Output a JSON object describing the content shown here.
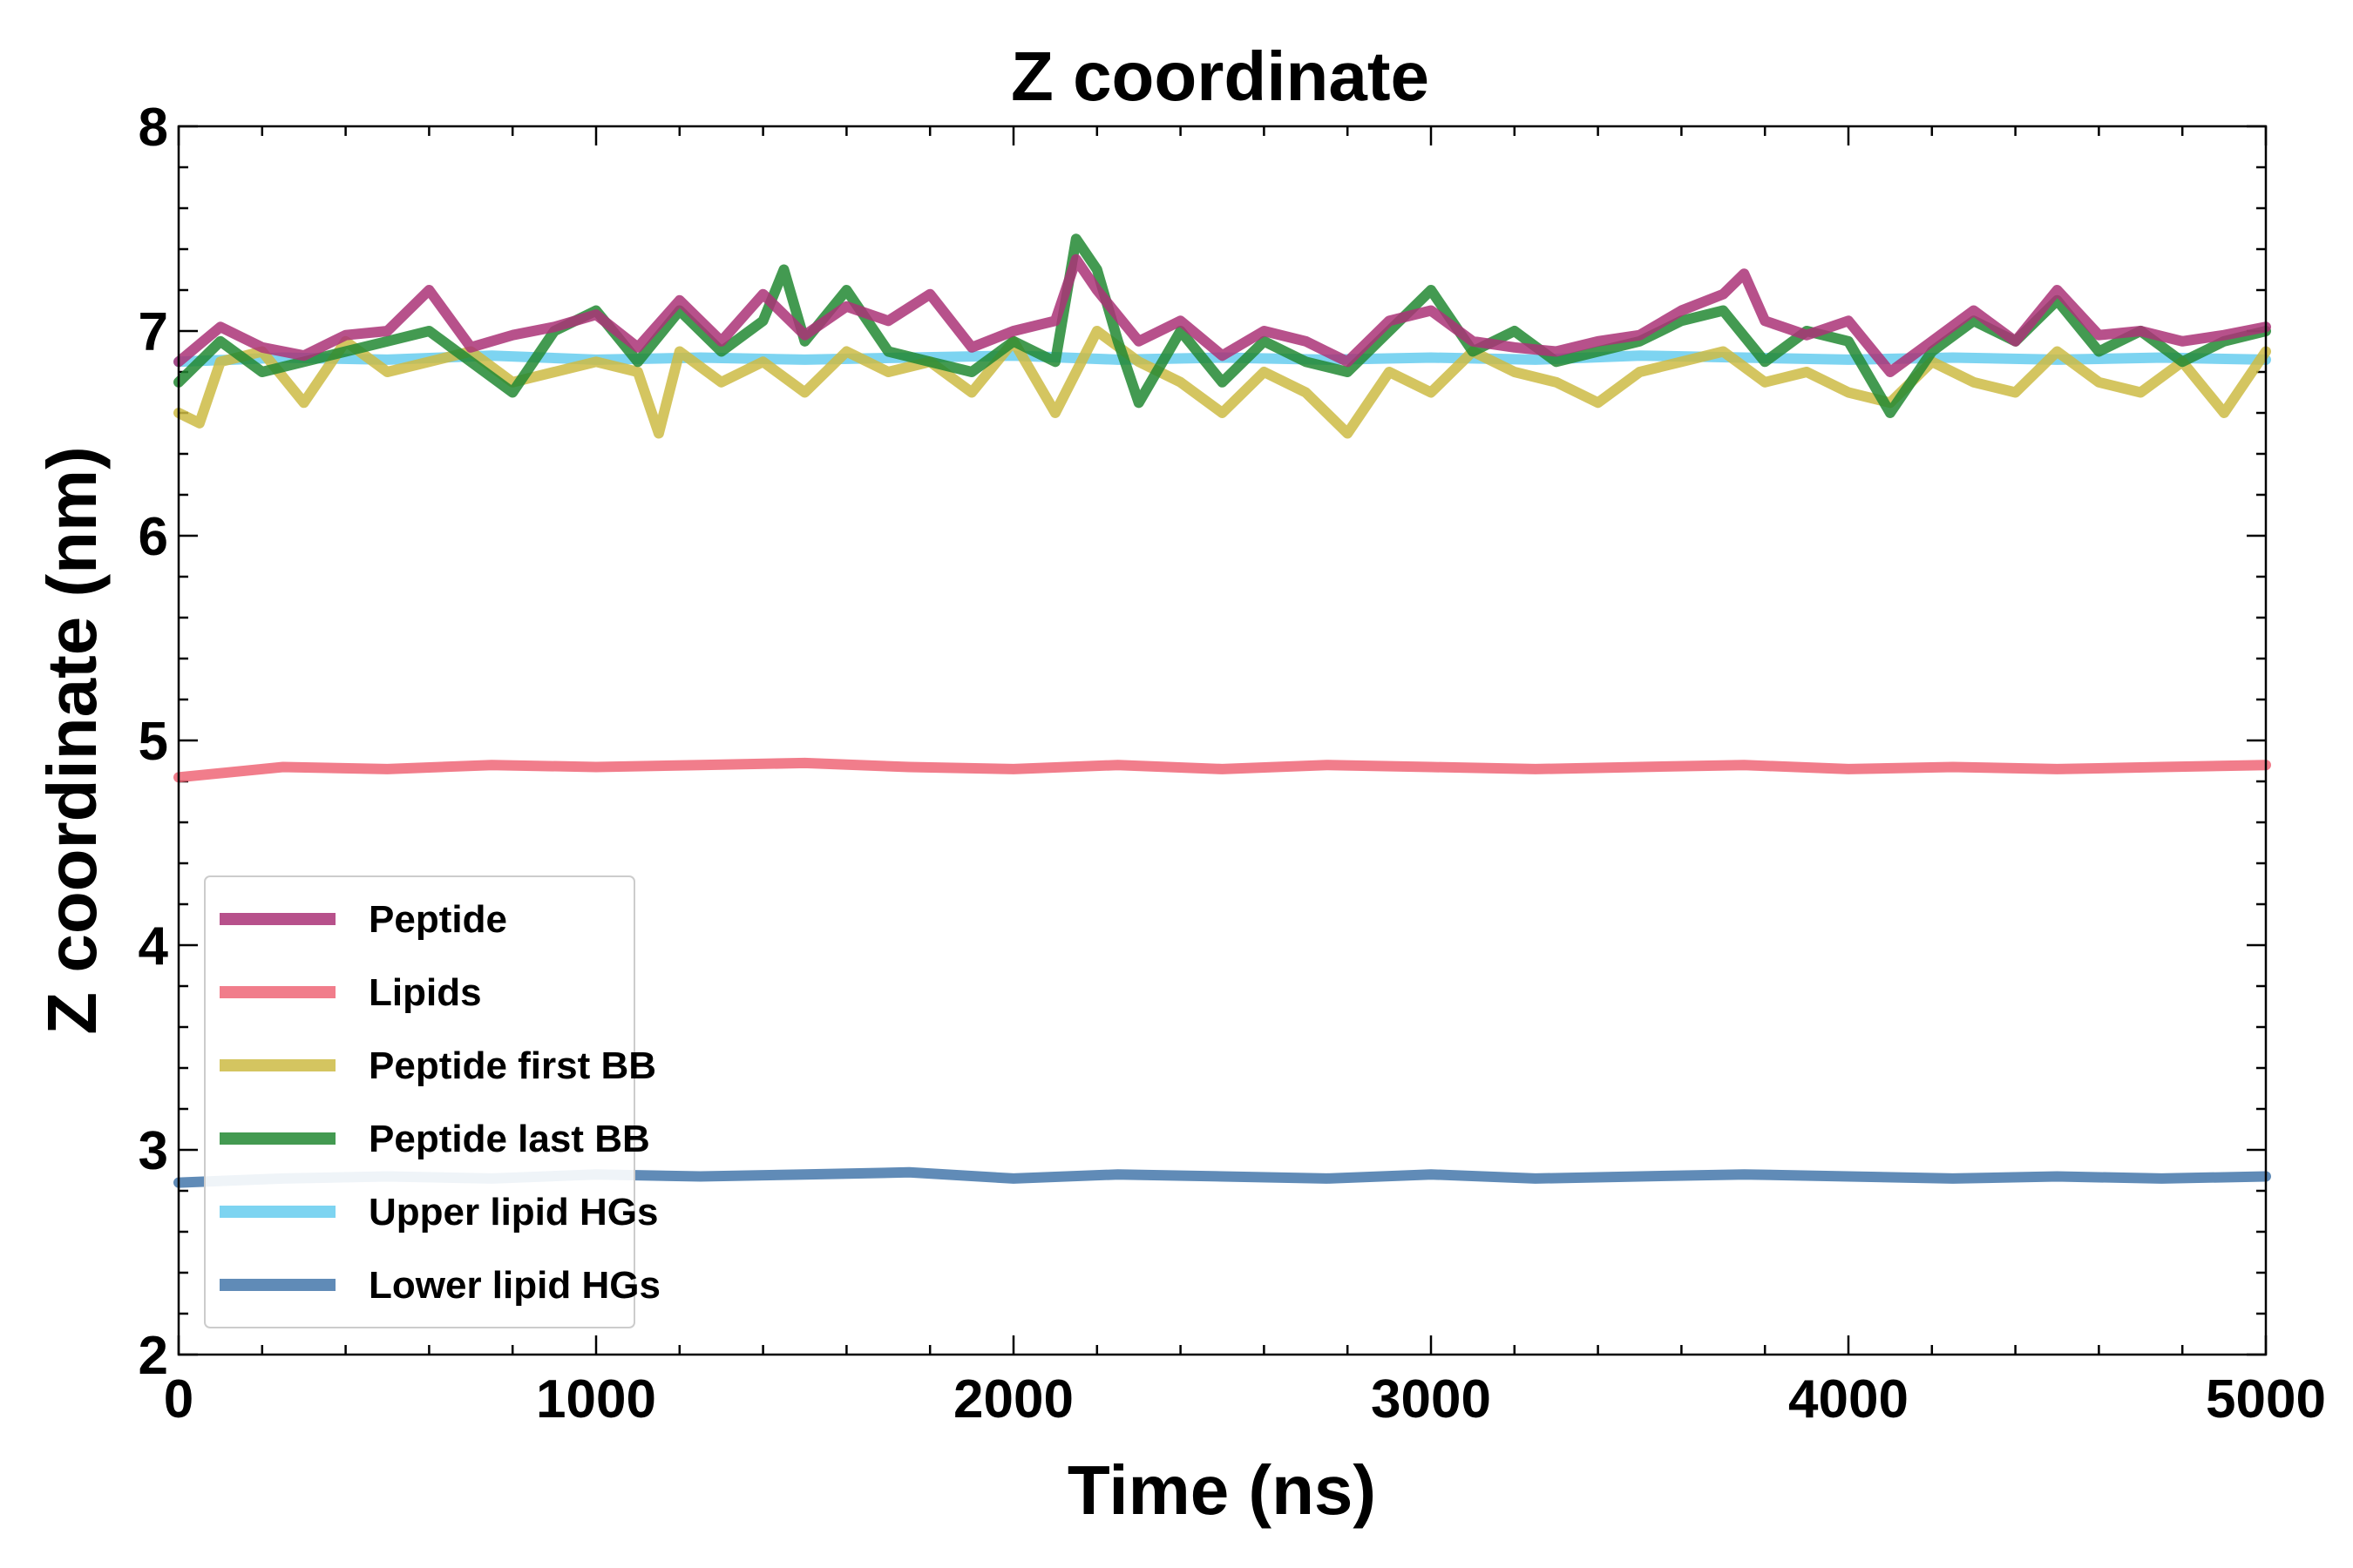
{
  "chart_data": {
    "type": "line",
    "title": "Z coordinate",
    "xlabel": "Time (ns)",
    "ylabel": "Z coordinate (nm)",
    "xlim": [
      0,
      5000
    ],
    "ylim": [
      2,
      8
    ],
    "x_ticks": [
      0,
      1000,
      2000,
      3000,
      4000,
      5000
    ],
    "y_ticks": [
      2,
      3,
      4,
      5,
      6,
      7,
      8
    ],
    "x_minor_step": 200,
    "y_minor_step": 0.2,
    "grid": false,
    "legend_position": "lower-left",
    "series": [
      {
        "name": "Peptide",
        "color": "#aa3377",
        "x": [
          0,
          100,
          200,
          300,
          400,
          500,
          600,
          700,
          800,
          900,
          1000,
          1100,
          1200,
          1300,
          1400,
          1500,
          1600,
          1700,
          1800,
          1900,
          2000,
          2100,
          2150,
          2200,
          2300,
          2400,
          2500,
          2600,
          2700,
          2800,
          2900,
          3000,
          3100,
          3200,
          3300,
          3400,
          3500,
          3600,
          3700,
          3750,
          3800,
          3900,
          4000,
          4100,
          4200,
          4300,
          4400,
          4500,
          4600,
          4700,
          4800,
          4900,
          5000
        ],
        "values": [
          6.85,
          7.02,
          6.92,
          6.88,
          6.98,
          7.0,
          7.2,
          6.92,
          6.98,
          7.02,
          7.08,
          6.92,
          7.15,
          6.95,
          7.18,
          6.98,
          7.12,
          7.05,
          7.18,
          6.92,
          7.0,
          7.05,
          7.35,
          7.2,
          6.95,
          7.05,
          6.88,
          7.0,
          6.95,
          6.85,
          7.05,
          7.1,
          6.95,
          6.92,
          6.9,
          6.95,
          6.98,
          7.1,
          7.18,
          7.28,
          7.05,
          6.98,
          7.05,
          6.8,
          6.95,
          7.1,
          6.95,
          7.2,
          6.98,
          7.0,
          6.95,
          6.98,
          7.02
        ]
      },
      {
        "name": "Lipids",
        "color": "#ee6677",
        "x": [
          0,
          250,
          500,
          750,
          1000,
          1250,
          1500,
          1750,
          2000,
          2250,
          2500,
          2750,
          3000,
          3250,
          3500,
          3750,
          4000,
          4250,
          4500,
          4750,
          5000
        ],
        "values": [
          4.82,
          4.87,
          4.86,
          4.88,
          4.87,
          4.88,
          4.89,
          4.87,
          4.86,
          4.88,
          4.86,
          4.88,
          4.87,
          4.86,
          4.87,
          4.88,
          4.86,
          4.87,
          4.86,
          4.87,
          4.88
        ]
      },
      {
        "name": "Peptide first BB",
        "color": "#ccbb44",
        "x": [
          0,
          50,
          100,
          200,
          300,
          400,
          500,
          600,
          700,
          800,
          900,
          1000,
          1100,
          1150,
          1200,
          1300,
          1400,
          1500,
          1600,
          1700,
          1800,
          1900,
          2000,
          2100,
          2200,
          2300,
          2400,
          2500,
          2600,
          2700,
          2800,
          2900,
          3000,
          3100,
          3200,
          3300,
          3400,
          3500,
          3600,
          3700,
          3800,
          3900,
          4000,
          4100,
          4200,
          4300,
          4400,
          4500,
          4600,
          4700,
          4800,
          4900,
          5000
        ],
        "values": [
          6.6,
          6.55,
          6.85,
          6.9,
          6.65,
          6.95,
          6.8,
          6.85,
          6.9,
          6.75,
          6.8,
          6.85,
          6.8,
          6.5,
          6.9,
          6.75,
          6.85,
          6.7,
          6.9,
          6.8,
          6.85,
          6.7,
          6.95,
          6.6,
          7.0,
          6.85,
          6.75,
          6.6,
          6.8,
          6.7,
          6.5,
          6.8,
          6.7,
          6.9,
          6.8,
          6.75,
          6.65,
          6.8,
          6.85,
          6.9,
          6.75,
          6.8,
          6.7,
          6.65,
          6.85,
          6.75,
          6.7,
          6.9,
          6.75,
          6.7,
          6.85,
          6.6,
          6.9
        ]
      },
      {
        "name": "Peptide last BB",
        "color": "#228833",
        "x": [
          0,
          100,
          200,
          300,
          400,
          500,
          600,
          700,
          800,
          900,
          1000,
          1100,
          1200,
          1300,
          1400,
          1450,
          1500,
          1600,
          1700,
          1800,
          1900,
          2000,
          2100,
          2150,
          2200,
          2250,
          2300,
          2400,
          2500,
          2600,
          2700,
          2800,
          2900,
          3000,
          3100,
          3200,
          3300,
          3400,
          3500,
          3600,
          3700,
          3800,
          3900,
          4000,
          4100,
          4200,
          4300,
          4400,
          4500,
          4600,
          4700,
          4800,
          4900,
          5000
        ],
        "values": [
          6.75,
          6.95,
          6.8,
          6.85,
          6.9,
          6.95,
          7.0,
          6.85,
          6.7,
          7.0,
          7.1,
          6.85,
          7.1,
          6.9,
          7.05,
          7.3,
          6.95,
          7.2,
          6.9,
          6.85,
          6.8,
          6.95,
          6.85,
          7.45,
          7.3,
          6.95,
          6.65,
          7.0,
          6.75,
          6.95,
          6.85,
          6.8,
          7.0,
          7.2,
          6.9,
          7.0,
          6.85,
          6.9,
          6.95,
          7.05,
          7.1,
          6.85,
          7.0,
          6.95,
          6.6,
          6.9,
          7.05,
          6.95,
          7.15,
          6.9,
          7.0,
          6.85,
          6.95,
          7.0
        ]
      },
      {
        "name": "Upper lipid HGs",
        "color": "#66ccee",
        "x": [
          0,
          250,
          500,
          750,
          1000,
          1250,
          1500,
          1750,
          2000,
          2250,
          2500,
          2750,
          3000,
          3250,
          3500,
          3750,
          4000,
          4250,
          4500,
          4750,
          5000
        ],
        "values": [
          6.85,
          6.87,
          6.86,
          6.88,
          6.86,
          6.87,
          6.86,
          6.87,
          6.88,
          6.86,
          6.87,
          6.86,
          6.87,
          6.86,
          6.88,
          6.87,
          6.86,
          6.87,
          6.86,
          6.87,
          6.86
        ]
      },
      {
        "name": "Lower lipid HGs",
        "color": "#4477aa",
        "x": [
          0,
          250,
          500,
          750,
          1000,
          1250,
          1500,
          1750,
          2000,
          2250,
          2500,
          2750,
          3000,
          3250,
          3500,
          3750,
          4000,
          4250,
          4500,
          4750,
          5000
        ],
        "values": [
          2.84,
          2.86,
          2.87,
          2.86,
          2.88,
          2.87,
          2.88,
          2.89,
          2.86,
          2.88,
          2.87,
          2.86,
          2.88,
          2.86,
          2.87,
          2.88,
          2.87,
          2.86,
          2.87,
          2.86,
          2.87
        ]
      }
    ]
  }
}
